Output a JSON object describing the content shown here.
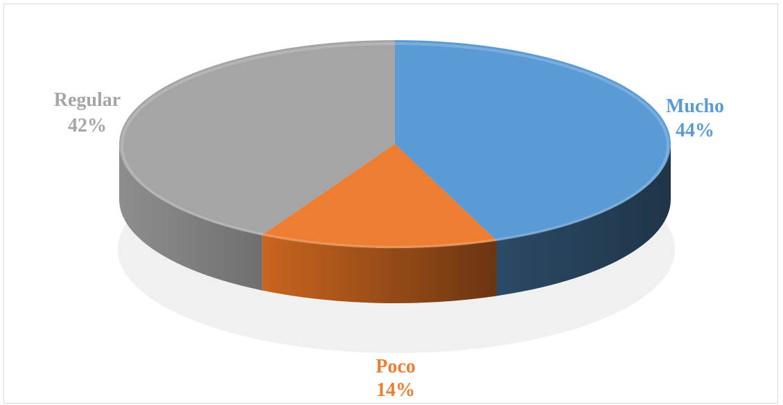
{
  "chart_data": {
    "type": "pie",
    "style": "3d",
    "title": "",
    "slices": [
      {
        "label": "Mucho",
        "value": 44,
        "pct": "44%",
        "color": "#5b9bd5",
        "side": "#243f56"
      },
      {
        "label": "Poco",
        "value": 14,
        "pct": "14%",
        "color": "#ed7d31",
        "side": "#a2521e"
      },
      {
        "label": "Regular",
        "value": 42,
        "pct": "42%",
        "color": "#a5a5a5",
        "side": "#7a7a7a"
      }
    ],
    "legend": "none"
  }
}
